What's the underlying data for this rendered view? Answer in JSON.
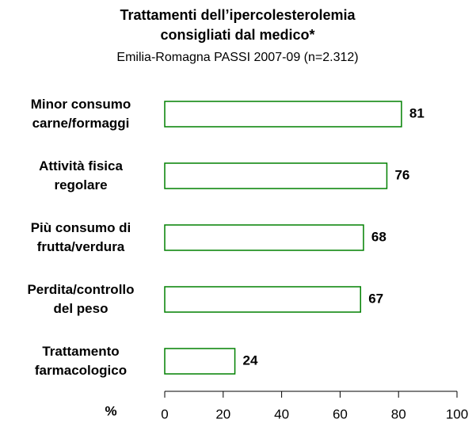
{
  "chart_data": {
    "type": "hbar",
    "title": "Trattamenti dell’ipercolesterolemia\nconsigliati dal medico*",
    "subtitle": "Emilia-Romagna   PASSI 2007-09   (n=2.312)",
    "x_label": "%",
    "categories": [
      "Minor consumo\ncarne/formaggi",
      "Attività fisica\nregolare",
      "Più consumo di\nfrutta/verdura",
      "Perdita/controllo\ndel peso",
      "Trattamento\nfarmacologico"
    ],
    "values": [
      81,
      76,
      68,
      67,
      24
    ],
    "color": "#008000",
    "xlim": [
      0,
      100
    ],
    "xticks": [
      0,
      20,
      40,
      60,
      80,
      100
    ]
  }
}
